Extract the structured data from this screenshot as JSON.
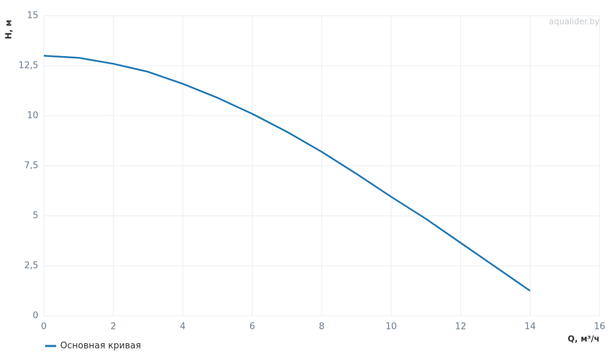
{
  "chart_data": {
    "type": "line",
    "watermark": "aqualider.by",
    "xlabel": "Q, м³/ч",
    "ylabel": "H, м",
    "x": [
      0,
      1,
      2,
      3,
      4,
      5,
      6,
      7,
      8,
      9,
      10,
      11,
      12,
      13,
      14
    ],
    "series": [
      {
        "name": "Основная кривая",
        "color": "#1f77b4",
        "values": [
          13,
          12.9,
          12.6,
          12.2,
          11.6,
          10.9,
          10.1,
          9.2,
          8.2,
          7.1,
          5.95,
          4.85,
          3.65,
          2.45,
          1.25
        ]
      }
    ],
    "xlim": [
      0,
      16
    ],
    "xticks": [
      0,
      2,
      4,
      6,
      8,
      10,
      12,
      14,
      16
    ],
    "ylim": [
      0,
      15
    ],
    "yticks": [
      0,
      {
        "value": 2.5,
        "label": "2,5"
      },
      5,
      {
        "value": 7.5,
        "label": "7,5"
      },
      10,
      {
        "value": 12.5,
        "label": "12,5"
      },
      15
    ],
    "grid": true,
    "legend": "bottom-left"
  }
}
